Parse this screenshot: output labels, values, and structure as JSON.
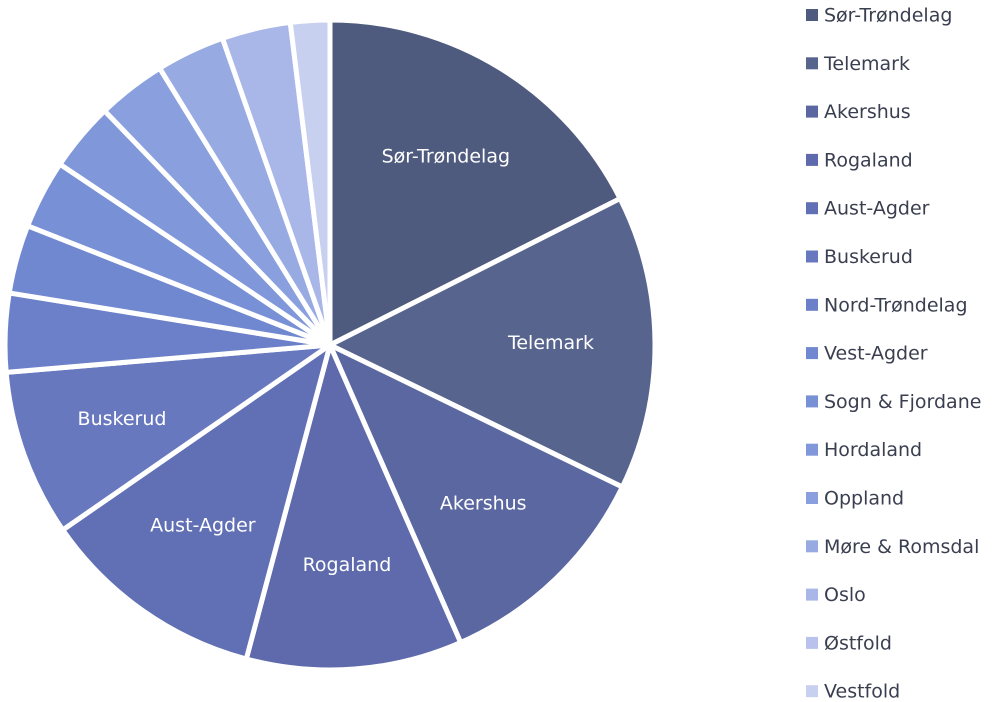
{
  "chart_data": {
    "type": "pie",
    "categories": [
      "Sør-Trøndelag",
      "Telemark",
      "Akershus",
      "Rogaland",
      "Aust-Agder",
      "Buskerud",
      "Nord-Trøndelag",
      "Vest-Agder",
      "Sogn & Fjordane",
      "Hordaland",
      "Oppland",
      "Møre & Romsdal",
      "Oslo",
      "Østfold",
      "Vestfold"
    ],
    "values": [
      18,
      15,
      11.5,
      11,
      11.5,
      8.5,
      4,
      3.5,
      3.5,
      3.5,
      3.5,
      3.5,
      3.5,
      0,
      2
    ],
    "colors": [
      "#4f5b7e",
      "#57648e",
      "#5a67a0",
      "#5e6aab",
      "#6170b4",
      "#6878bf",
      "#6b80c8",
      "#7088cf",
      "#7890d6",
      "#8098da",
      "#8aa0de",
      "#98aae2",
      "#a8b6e8",
      "#b8c2ec",
      "#c8d0f0"
    ],
    "legend": "right"
  }
}
